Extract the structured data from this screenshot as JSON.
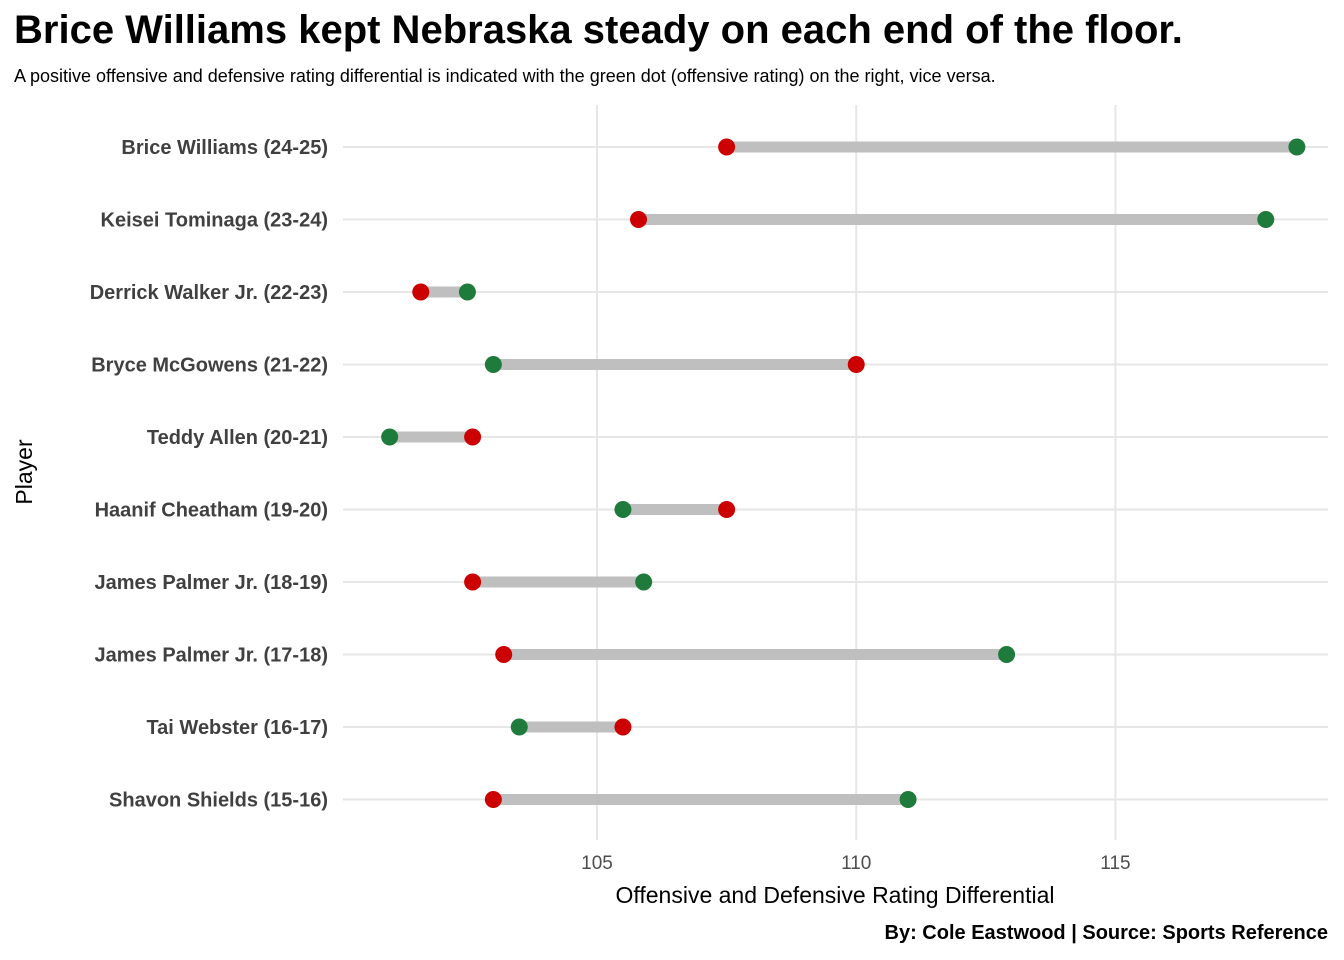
{
  "chart_data": {
    "type": "dumbbell",
    "title": "Brice Williams kept Nebraska steady on each end of the floor.",
    "subtitle": "A positive offensive and defensive rating differential is indicated with the green dot (offensive rating) on the right, vice versa.",
    "xlabel": "Offensive and Defensive Rating Differential",
    "ylabel": "Player",
    "caption": "By: Cole Eastwood | Source: Sports Reference",
    "xlim": [
      100.1,
      119.1
    ],
    "xticks": [
      105,
      110,
      115
    ],
    "grid": true,
    "colors": {
      "offensive": "#1e7b3c",
      "defensive": "#cc0000",
      "segment": "#bfbfbf",
      "grid": "#e6e6e6"
    },
    "players": [
      {
        "label": "Brice Williams (24-25)",
        "offensive": 118.5,
        "defensive": 107.5
      },
      {
        "label": "Keisei Tominaga (23-24)",
        "offensive": 117.9,
        "defensive": 105.8
      },
      {
        "label": "Derrick Walker Jr. (22-23)",
        "offensive": 102.5,
        "defensive": 101.6
      },
      {
        "label": "Bryce McGowens (21-22)",
        "offensive": 103.0,
        "defensive": 110.0
      },
      {
        "label": "Teddy Allen (20-21)",
        "offensive": 101.0,
        "defensive": 102.6
      },
      {
        "label": "Haanif Cheatham (19-20)",
        "offensive": 105.5,
        "defensive": 107.5
      },
      {
        "label": "James Palmer Jr. (18-19)",
        "offensive": 105.9,
        "defensive": 102.6
      },
      {
        "label": "James Palmer Jr. (17-18)",
        "offensive": 112.9,
        "defensive": 103.2
      },
      {
        "label": "Tai Webster (16-17)",
        "offensive": 103.5,
        "defensive": 105.5
      },
      {
        "label": "Shavon Shields (15-16)",
        "offensive": 111.0,
        "defensive": 103.0
      }
    ]
  }
}
